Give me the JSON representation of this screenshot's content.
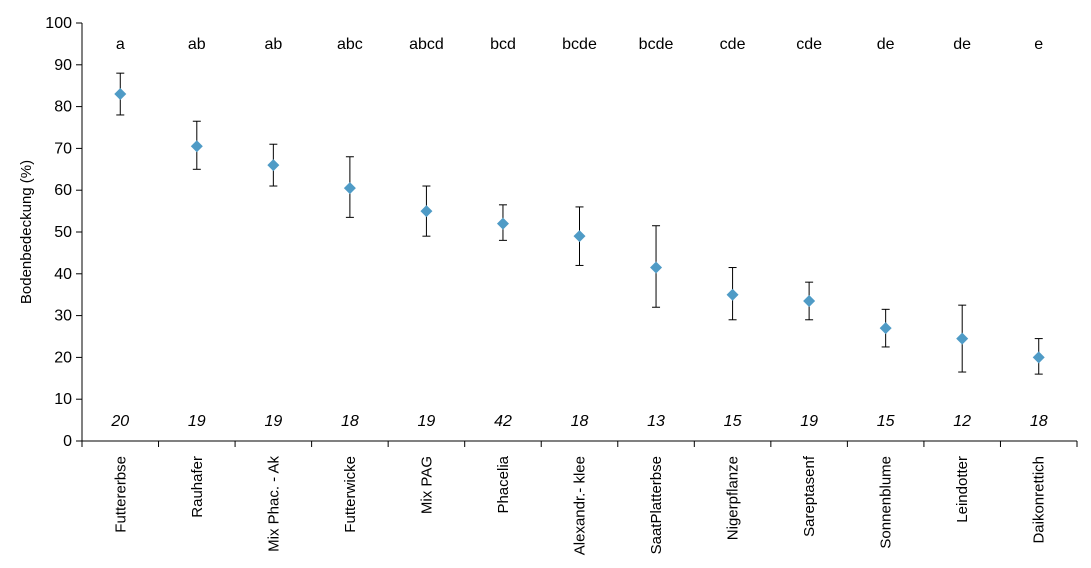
{
  "chart_data": {
    "type": "scatter",
    "ylabel": "Bodenbedeckung (%)",
    "xlabel": "",
    "ylim": [
      0,
      100
    ],
    "yticks": [
      0,
      10,
      20,
      30,
      40,
      50,
      60,
      70,
      80,
      90,
      100
    ],
    "grid": false,
    "marker_color": "#4f9bc6",
    "errorbar_color": "#000000",
    "categories": [
      "Futtererbse",
      "Rauhafer",
      "Mix Phac. - Ak",
      "Futterwicke",
      "Mix PAG",
      "Phacelia",
      "Alexandr.- klee",
      "SaatPlatterbse",
      "Nigerpflanze",
      "Sareptasenf",
      "Sonnenblume",
      "Leindotter",
      "Daikonrettich"
    ],
    "values": [
      83,
      70.5,
      66,
      60.5,
      55,
      52,
      49,
      41.5,
      35,
      33.5,
      27,
      24.5,
      20
    ],
    "error_low": [
      78,
      65,
      61,
      53.5,
      49,
      48,
      42,
      32,
      29,
      29,
      22.5,
      16.5,
      16
    ],
    "error_high": [
      88,
      76.5,
      71,
      68,
      61,
      56.5,
      56,
      51.5,
      41.5,
      38,
      31.5,
      32.5,
      24.5
    ],
    "significance_letters": [
      "a",
      "ab",
      "ab",
      "abc",
      "abcd",
      "bcd",
      "bcde",
      "bcde",
      "cde",
      "cde",
      "de",
      "de",
      "e"
    ],
    "n": [
      "20",
      "19",
      "19",
      "18",
      "19",
      "42",
      "18",
      "13",
      "15",
      "19",
      "15",
      "12",
      "18"
    ]
  }
}
